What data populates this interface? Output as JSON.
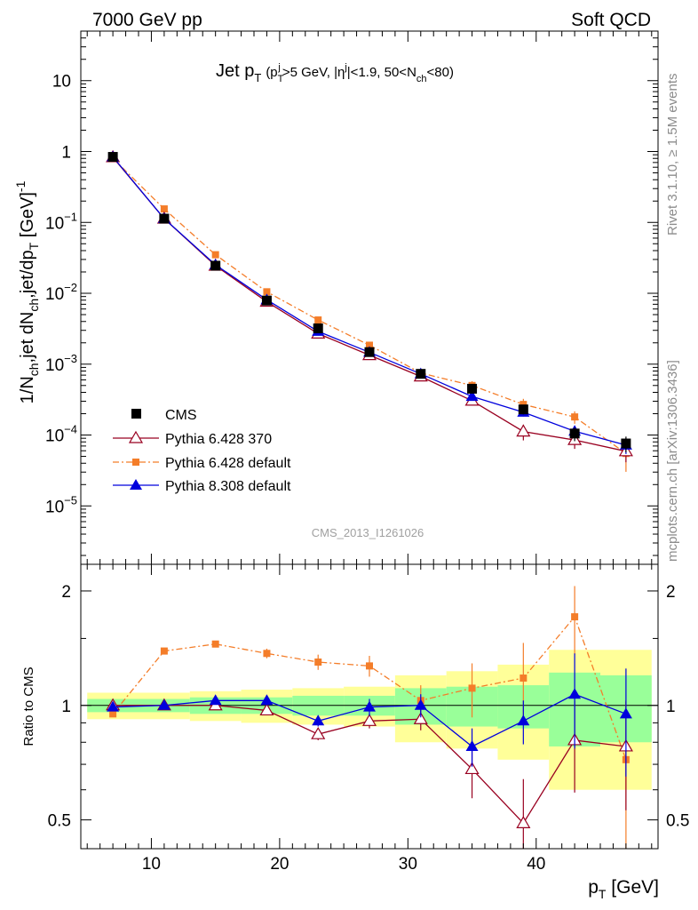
{
  "header": {
    "left": "7000 GeV pp",
    "right": "Soft QCD"
  },
  "side_labels": {
    "rivet": "Rivet 3.1.10, ≥ 1.5M events",
    "mcplots": "mcplots.cern.ch [arXiv:1306.3436]"
  },
  "watermark": "CMS_2013_I1261026",
  "plot_title": {
    "main": "Jet p",
    "main_sub": "T",
    "cut_open": "(p",
    "cut_sub": "T",
    "cut_sup": "j",
    "cut_rest1": ">5 GeV, |η",
    "cut_sup2": "j",
    "cut_rest2": "|<1.9, 50<N",
    "cut_sub2": "ch",
    "cut_close": "<80)"
  },
  "axes": {
    "ylabel_main": "1/N",
    "ylabel_sub1": "ch",
    "ylabel_mid": ",jet dN",
    "ylabel_sub2": "ch",
    "ylabel_mid2": ",jet/dp",
    "ylabel_sub3": "T",
    "ylabel_bracket": " [GeV]",
    "ylabel_sup": "-1",
    "ratio_ylabel": "Ratio to CMS",
    "xlabel_main": "p",
    "xlabel_sub": "T",
    "xlabel_unit": " [GeV]"
  },
  "chart_data": [
    {
      "type": "line",
      "panel": "main",
      "xlim": [
        4.5,
        49.5
      ],
      "ylim": [
        1.5e-06,
        50
      ],
      "yscale": "log",
      "xticks": [
        10,
        20,
        30,
        40
      ],
      "xtick_labels": [
        "10",
        "20",
        "30",
        "40"
      ],
      "yticks": [
        1e-05,
        0.0001,
        0.001,
        0.01,
        0.1,
        1,
        10
      ],
      "ytick_labels": [
        {
          "base": "10",
          "exp": "−5"
        },
        {
          "base": "10",
          "exp": "−4"
        },
        {
          "base": "10",
          "exp": "−3"
        },
        {
          "base": "10",
          "exp": "−2"
        },
        {
          "base": "10",
          "exp": "−1"
        },
        {
          "base": "1",
          "exp": ""
        },
        {
          "base": "10",
          "exp": ""
        }
      ],
      "legend_position": "bottom-left",
      "x": [
        7,
        11,
        15,
        19,
        23,
        27,
        31,
        35,
        39,
        43,
        47
      ],
      "series": [
        {
          "name": "CMS",
          "style": "data",
          "color": "#000000",
          "values": [
            0.84,
            0.113,
            0.0245,
            0.0079,
            0.0032,
            0.00148,
            0.00073,
            0.00045,
            0.00023,
            0.000105,
            7.6e-05
          ],
          "err_rel": [
            0.03,
            0.03,
            0.03,
            0.04,
            0.06,
            0.08,
            0.1,
            0.12,
            0.15,
            0.22,
            0.25
          ]
        },
        {
          "name": "Pythia 6.428 370",
          "style": "open-triangle",
          "color": "#990020",
          "values": [
            0.83,
            0.113,
            0.0245,
            0.0076,
            0.0027,
            0.00134,
            0.00067,
            0.000305,
            0.000112,
            8.5e-05,
            5.9e-05
          ],
          "err_rel": [
            0.0,
            0.0,
            0.0,
            0.0,
            0.03,
            0.04,
            0.06,
            0.1,
            0.25,
            0.25,
            0.3
          ]
        },
        {
          "name": "Pythia 6.428 default",
          "style": "square-dashdot",
          "color": "#f47d29",
          "values": [
            0.8,
            0.155,
            0.035,
            0.0105,
            0.0042,
            0.00185,
            0.00075,
            0.0005,
            0.00027,
            0.00018,
            5.5e-05
          ],
          "err_rel": [
            0.0,
            0.0,
            0.0,
            0.03,
            0.05,
            0.07,
            0.1,
            0.15,
            0.2,
            0.2,
            0.45
          ]
        },
        {
          "name": "Pythia 8.308 default",
          "style": "filled-triangle",
          "color": "#0000dd",
          "values": [
            0.84,
            0.113,
            0.0252,
            0.0081,
            0.0029,
            0.00147,
            0.00073,
            0.00035,
            0.00021,
            0.000113,
            7.2e-05
          ],
          "err_rel": [
            0.0,
            0.0,
            0.0,
            0.02,
            0.03,
            0.05,
            0.08,
            0.1,
            0.13,
            0.2,
            0.25
          ]
        }
      ]
    },
    {
      "type": "line",
      "panel": "ratio",
      "xlim": [
        4.5,
        49.5
      ],
      "ylim": [
        0.42,
        2.35
      ],
      "yscale": "log",
      "yticks": [
        0.5,
        1,
        2
      ],
      "ytick_labels": [
        "0.5",
        "1",
        "2"
      ],
      "x": [
        7,
        11,
        15,
        19,
        23,
        27,
        31,
        35,
        39,
        43,
        47
      ],
      "bins": [
        [
          5,
          9
        ],
        [
          9,
          13
        ],
        [
          13,
          17
        ],
        [
          17,
          21
        ],
        [
          21,
          25
        ],
        [
          25,
          29
        ],
        [
          29,
          33
        ],
        [
          33,
          37
        ],
        [
          37,
          41
        ],
        [
          41,
          45
        ],
        [
          45,
          49
        ]
      ],
      "band_green": [
        0.04,
        0.04,
        0.05,
        0.05,
        0.06,
        0.06,
        0.11,
        0.12,
        0.13,
        0.22,
        0.2
      ],
      "band_yellow": [
        0.08,
        0.08,
        0.09,
        0.1,
        0.11,
        0.12,
        0.2,
        0.23,
        0.28,
        0.4,
        0.4
      ],
      "series": [
        {
          "name": "Pythia 6.428 370",
          "values": [
            1.0,
            1.0,
            1.0,
            0.97,
            0.84,
            0.91,
            0.92,
            0.68,
            0.49,
            0.81,
            0.78
          ],
          "err": [
            0.0,
            0.0,
            0.01,
            0.02,
            0.03,
            0.04,
            0.06,
            0.11,
            0.15,
            0.22,
            0.25
          ]
        },
        {
          "name": "Pythia 6.428 default",
          "values": [
            0.95,
            1.39,
            1.45,
            1.37,
            1.3,
            1.27,
            1.03,
            1.11,
            1.18,
            1.71,
            0.72
          ],
          "err": [
            0.0,
            0.01,
            0.02,
            0.04,
            0.06,
            0.08,
            0.1,
            0.18,
            0.28,
            0.35,
            0.3
          ]
        },
        {
          "name": "Pythia 8.308 default",
          "values": [
            0.99,
            1.0,
            1.03,
            1.03,
            0.91,
            0.99,
            1.0,
            0.78,
            0.91,
            1.07,
            0.95
          ],
          "err": [
            0.0,
            0.0,
            0.01,
            0.03,
            0.03,
            0.05,
            0.07,
            0.09,
            0.12,
            0.3,
            0.3
          ]
        }
      ]
    }
  ]
}
